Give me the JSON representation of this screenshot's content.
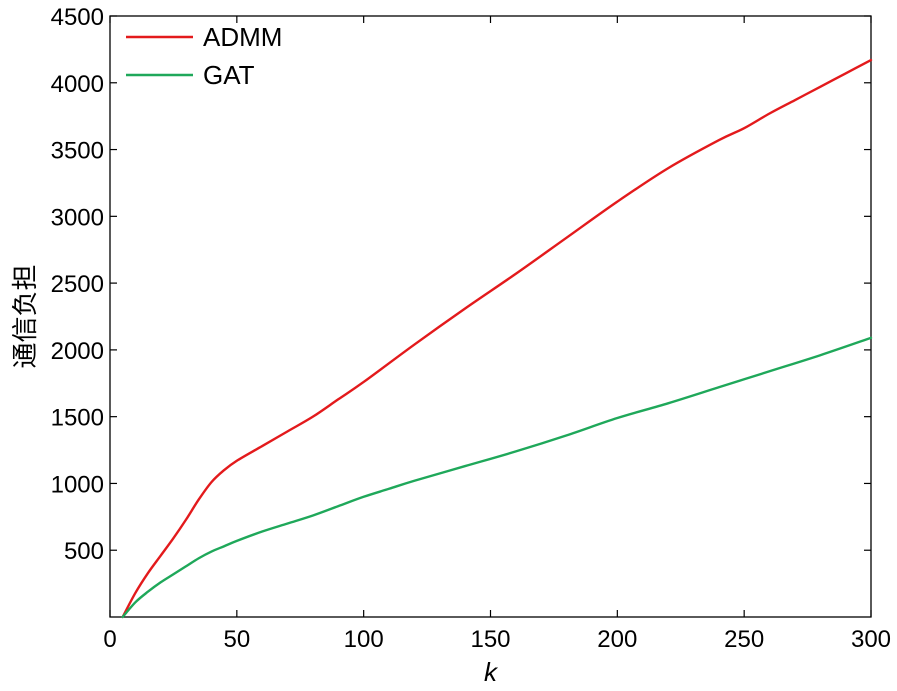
{
  "chart_data": {
    "type": "line",
    "title": "",
    "xlabel": "k",
    "ylabel": "通信负担",
    "xlim": [
      0,
      300
    ],
    "ylim": [
      0,
      4500
    ],
    "xticks": [
      0,
      50,
      100,
      150,
      200,
      250,
      300
    ],
    "xtick_labels": [
      "0",
      "50",
      "100",
      "150",
      "200",
      "250",
      "300"
    ],
    "yticks": [
      500,
      1000,
      1500,
      2000,
      2500,
      3000,
      3500,
      4000,
      4500
    ],
    "ytick_labels": [
      "500",
      "1000",
      "1500",
      "2000",
      "2500",
      "3000",
      "3500",
      "4000",
      "4500"
    ],
    "grid": false,
    "legend_position": "top-left",
    "series": [
      {
        "name": "ADMM",
        "color": "#e31a1c",
        "x": [
          5,
          10,
          15,
          20,
          25,
          30,
          35,
          40,
          45,
          50,
          60,
          70,
          80,
          90,
          100,
          120,
          140,
          160,
          180,
          200,
          220,
          240,
          250,
          260,
          270,
          280,
          290,
          300
        ],
        "y": [
          0,
          180,
          330,
          460,
          590,
          730,
          880,
          1010,
          1100,
          1170,
          1280,
          1390,
          1500,
          1630,
          1760,
          2040,
          2310,
          2570,
          2840,
          3110,
          3360,
          3570,
          3660,
          3770,
          3870,
          3970,
          4070,
          4170
        ]
      },
      {
        "name": "GAT",
        "color": "#1fa85a",
        "x": [
          5,
          10,
          15,
          20,
          25,
          30,
          35,
          40,
          45,
          50,
          60,
          70,
          80,
          90,
          100,
          110,
          120,
          140,
          160,
          180,
          200,
          220,
          240,
          260,
          280,
          300
        ],
        "y": [
          0,
          110,
          190,
          260,
          320,
          380,
          440,
          490,
          530,
          570,
          640,
          700,
          760,
          830,
          900,
          960,
          1020,
          1130,
          1240,
          1360,
          1490,
          1600,
          1720,
          1840,
          1960,
          2090
        ]
      }
    ]
  }
}
